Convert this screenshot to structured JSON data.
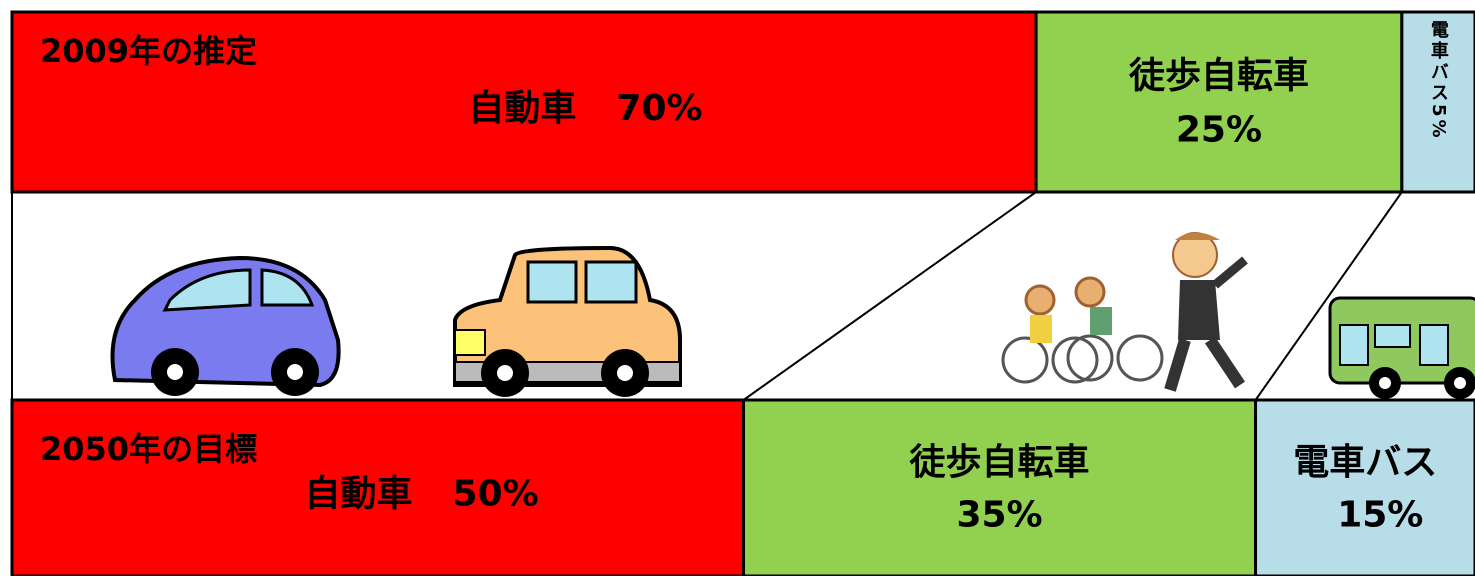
{
  "rows": [
    {
      "title": "2009年の推定",
      "segments": [
        {
          "label": "自動車",
          "value": 70,
          "value_label": "70%",
          "color": "#ff0000"
        },
        {
          "label": "徒歩自転車",
          "value": 25,
          "value_label": "25%",
          "color": "#92d050"
        },
        {
          "label": "電車バス",
          "value": 5,
          "value_label": "5%",
          "color": "#b7dde8"
        }
      ]
    },
    {
      "title": "2050年の目標",
      "segments": [
        {
          "label": "自動車",
          "value": 50,
          "value_label": "50%",
          "color": "#ff0000"
        },
        {
          "label": "徒歩自転車",
          "value": 35,
          "value_label": "35%",
          "color": "#92d050"
        },
        {
          "label": "電車バス",
          "value": 15,
          "value_label": "15%",
          "color": "#b7dde8"
        }
      ]
    }
  ]
}
